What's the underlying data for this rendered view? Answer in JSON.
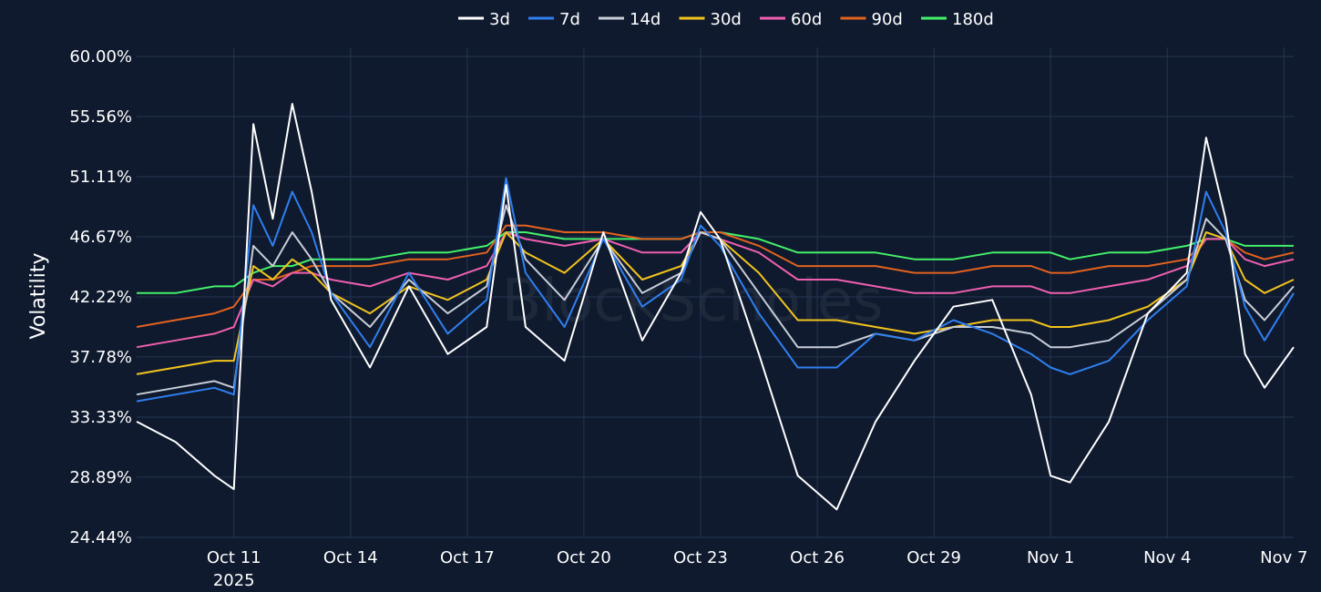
{
  "chart_data": {
    "type": "line",
    "title": "",
    "xlabel": "",
    "ylabel": "Volatility",
    "watermark": "BlockScholes",
    "y_ticks": [
      "24.44%",
      "28.89%",
      "33.33%",
      "37.78%",
      "42.22%",
      "46.67%",
      "51.11%",
      "55.56%",
      "60.00%"
    ],
    "y_tick_values": [
      24.44,
      28.89,
      33.33,
      37.78,
      42.22,
      46.67,
      51.11,
      55.56,
      60.0
    ],
    "ylim": [
      24.44,
      60.0
    ],
    "x_ticks": [
      "Oct 11",
      "Oct 14",
      "Oct 17",
      "Oct 20",
      "Oct 23",
      "Oct 26",
      "Oct 29",
      "Nov 1",
      "Nov 4",
      "Nov 7"
    ],
    "x_tick_values": [
      "2025-10-11",
      "2025-10-14",
      "2025-10-17",
      "2025-10-20",
      "2025-10-23",
      "2025-10-26",
      "2025-10-29",
      "2025-11-01",
      "2025-11-04",
      "2025-11-07"
    ],
    "x_year_label": "2025",
    "xlim": [
      "2025-10-08 12:00",
      "2025-11-07 06:00"
    ],
    "grid": true,
    "legend_position": "top-center",
    "x": [
      "2025-10-08 12:00",
      "2025-10-09 12:00",
      "2025-10-10 12:00",
      "2025-10-11 00:00",
      "2025-10-11 12:00",
      "2025-10-12 00:00",
      "2025-10-12 12:00",
      "2025-10-13 00:00",
      "2025-10-13 12:00",
      "2025-10-14 12:00",
      "2025-10-15 12:00",
      "2025-10-16 12:00",
      "2025-10-17 12:00",
      "2025-10-18 00:00",
      "2025-10-18 12:00",
      "2025-10-19 12:00",
      "2025-10-20 12:00",
      "2025-10-21 12:00",
      "2025-10-22 12:00",
      "2025-10-23 00:00",
      "2025-10-23 12:00",
      "2025-10-24 12:00",
      "2025-10-25 12:00",
      "2025-10-26 12:00",
      "2025-10-27 12:00",
      "2025-10-28 12:00",
      "2025-10-29 12:00",
      "2025-10-30 12:00",
      "2025-10-31 12:00",
      "2025-11-01 00:00",
      "2025-11-01 12:00",
      "2025-11-02 12:00",
      "2025-11-03 12:00",
      "2025-11-04 12:00",
      "2025-11-05 00:00",
      "2025-11-05 12:00",
      "2025-11-06 00:00",
      "2025-11-06 12:00",
      "2025-11-07 06:00"
    ],
    "series": [
      {
        "name": "3d",
        "color": "#ffffff",
        "values": [
          33.0,
          31.5,
          29.0,
          28.0,
          55.0,
          48.0,
          56.5,
          50.0,
          42.0,
          37.0,
          43.0,
          38.0,
          40.0,
          50.5,
          40.0,
          37.5,
          47.0,
          39.0,
          44.0,
          48.5,
          46.5,
          38.0,
          29.0,
          26.5,
          33.0,
          37.5,
          41.5,
          42.0,
          35.0,
          29.0,
          28.5,
          33.0,
          41.0,
          44.0,
          54.0,
          48.0,
          38.0,
          35.5,
          38.5
        ]
      },
      {
        "name": "7d",
        "color": "#2f7ff0",
        "values": [
          34.5,
          35.0,
          35.5,
          35.0,
          49.0,
          46.0,
          50.0,
          47.0,
          42.5,
          38.5,
          44.0,
          39.5,
          42.0,
          51.0,
          44.0,
          40.0,
          46.5,
          41.5,
          43.5,
          47.5,
          46.0,
          41.0,
          37.0,
          37.0,
          39.5,
          39.0,
          40.5,
          39.5,
          38.0,
          37.0,
          36.5,
          37.5,
          40.5,
          43.0,
          50.0,
          47.0,
          41.5,
          39.0,
          42.5
        ]
      },
      {
        "name": "14d",
        "color": "#c8cdd8",
        "values": [
          35.0,
          35.5,
          36.0,
          35.5,
          46.0,
          44.5,
          47.0,
          45.0,
          42.5,
          40.0,
          43.5,
          41.0,
          43.0,
          49.0,
          45.0,
          42.0,
          46.5,
          42.5,
          44.0,
          47.0,
          46.5,
          42.5,
          38.5,
          38.5,
          39.5,
          39.0,
          40.0,
          40.0,
          39.5,
          38.5,
          38.5,
          39.0,
          41.0,
          43.5,
          48.0,
          46.5,
          42.0,
          40.5,
          43.0
        ]
      },
      {
        "name": "30d",
        "color": "#f2c31d",
        "values": [
          36.5,
          37.0,
          37.5,
          37.5,
          44.5,
          43.5,
          45.0,
          44.0,
          42.5,
          41.0,
          43.0,
          42.0,
          43.5,
          47.0,
          45.5,
          44.0,
          46.5,
          43.5,
          44.5,
          47.0,
          46.5,
          44.0,
          40.5,
          40.5,
          40.0,
          39.5,
          40.0,
          40.5,
          40.5,
          40.0,
          40.0,
          40.5,
          41.5,
          43.5,
          47.0,
          46.5,
          43.5,
          42.5,
          43.5
        ]
      },
      {
        "name": "60d",
        "color": "#ef5fb0",
        "values": [
          38.5,
          39.0,
          39.5,
          40.0,
          43.5,
          43.0,
          44.0,
          44.0,
          43.5,
          43.0,
          44.0,
          43.5,
          44.5,
          47.0,
          46.5,
          46.0,
          46.5,
          45.5,
          45.5,
          47.0,
          46.5,
          45.5,
          43.5,
          43.5,
          43.0,
          42.5,
          42.5,
          43.0,
          43.0,
          42.5,
          42.5,
          43.0,
          43.5,
          44.5,
          46.5,
          46.5,
          45.0,
          44.5,
          45.0
        ]
      },
      {
        "name": "90d",
        "color": "#e3621f",
        "values": [
          40.0,
          40.5,
          41.0,
          41.5,
          43.5,
          43.5,
          44.0,
          44.5,
          44.5,
          44.5,
          45.0,
          45.0,
          45.5,
          47.5,
          47.5,
          47.0,
          47.0,
          46.5,
          46.5,
          47.0,
          47.0,
          46.0,
          44.5,
          44.5,
          44.5,
          44.0,
          44.0,
          44.5,
          44.5,
          44.0,
          44.0,
          44.5,
          44.5,
          45.0,
          46.5,
          46.5,
          45.5,
          45.0,
          45.5
        ]
      },
      {
        "name": "180d",
        "color": "#44f06a",
        "values": [
          42.5,
          42.5,
          43.0,
          43.0,
          44.0,
          44.5,
          44.5,
          45.0,
          45.0,
          45.0,
          45.5,
          45.5,
          46.0,
          47.0,
          47.0,
          46.5,
          46.5,
          46.5,
          46.5,
          47.0,
          47.0,
          46.5,
          45.5,
          45.5,
          45.5,
          45.0,
          45.0,
          45.5,
          45.5,
          45.5,
          45.0,
          45.5,
          45.5,
          46.0,
          46.5,
          46.5,
          46.0,
          46.0,
          46.0
        ]
      }
    ]
  }
}
